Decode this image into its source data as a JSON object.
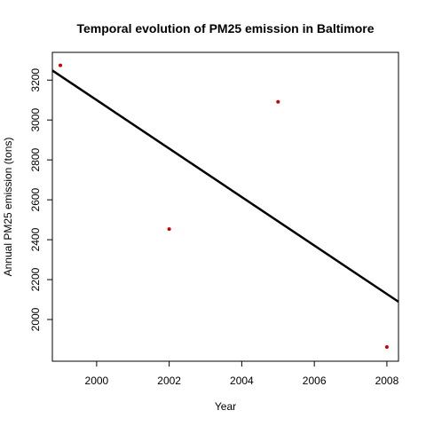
{
  "chart_data": {
    "type": "scatter",
    "title": "Temporal evolution of PM25 emission in Baltimore",
    "xlabel": "Year",
    "ylabel": "Annual PM25 emission (tons)",
    "xlim": [
      1998.78,
      2008.32
    ],
    "ylim": [
      1791,
      3339
    ],
    "x_ticks": [
      2000,
      2002,
      2004,
      2006,
      2008
    ],
    "y_ticks": [
      2000,
      2200,
      2400,
      2600,
      2800,
      3000,
      3200
    ],
    "points": [
      {
        "x": 1999,
        "y": 3274
      },
      {
        "x": 2002,
        "y": 2453
      },
      {
        "x": 2005,
        "y": 3091
      },
      {
        "x": 2008,
        "y": 1862
      }
    ],
    "point_color": "#cc0000",
    "trend_line": {
      "x": [
        1998.78,
        2008.32
      ],
      "y": [
        3248,
        2089
      ],
      "color": "#000000"
    },
    "grid": false,
    "legend": "none"
  }
}
